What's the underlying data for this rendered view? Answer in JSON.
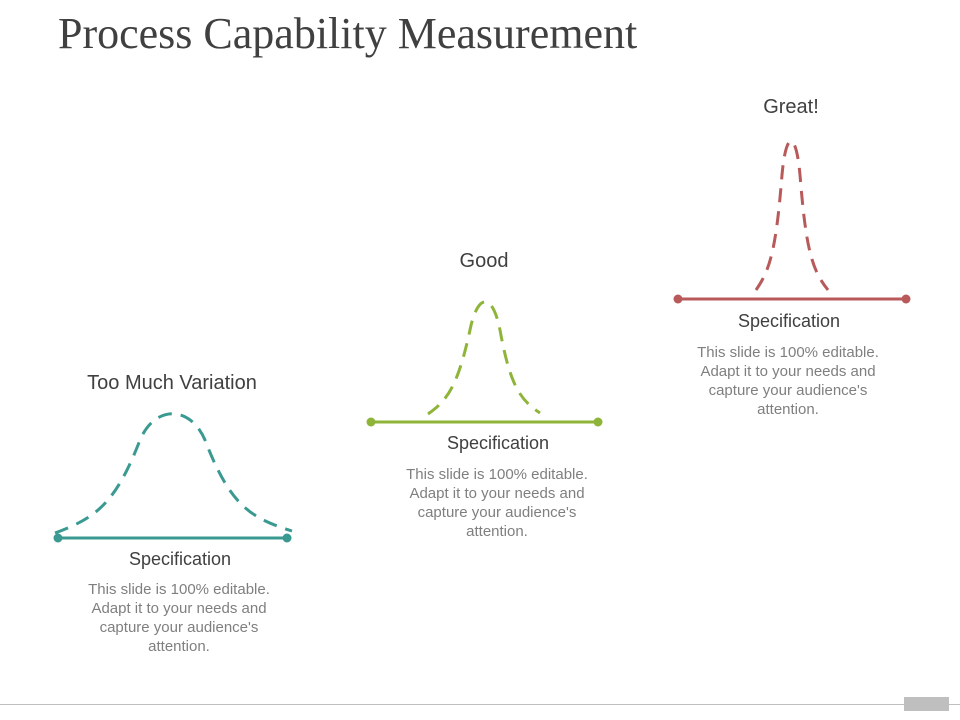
{
  "slide": {
    "title": "Process Capability Measurement"
  },
  "panels": [
    {
      "label": "Too Much Variation",
      "spec_label": "Specification",
      "description": "This slide is 100% editable. Adapt it to your needs and capture your audience's attention.",
      "color": "#3a9a91"
    },
    {
      "label": "Good",
      "spec_label": "Specification",
      "description": "This slide is 100% editable. Adapt it to your needs and capture your audience's attention.",
      "color": "#8fb43a"
    },
    {
      "label": "Great!",
      "spec_label": "Specification",
      "description": "This slide is 100% editable. Adapt it to your needs and capture your audience's attention.",
      "color": "#b85a5a"
    }
  ]
}
